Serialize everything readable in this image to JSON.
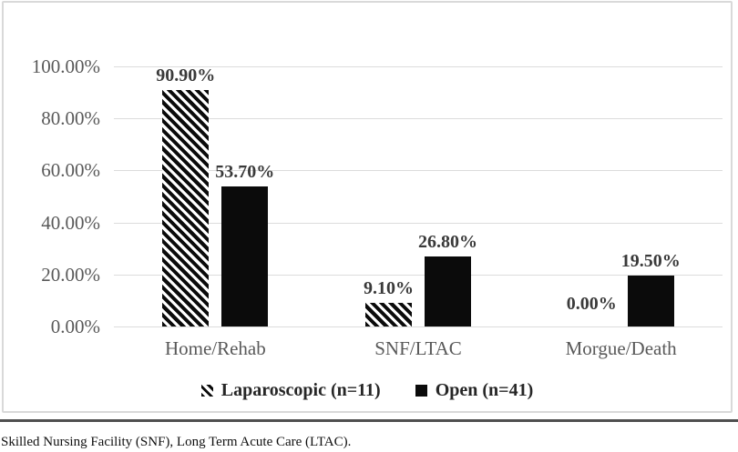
{
  "figure": {
    "footnote": "Skilled Nursing Facility (SNF), Long Term Acute Care (LTAC)."
  },
  "chart_data": {
    "type": "bar",
    "title": "",
    "xlabel": "",
    "ylabel": "",
    "categories": [
      "Home/Rehab",
      "SNF/LTAC",
      "Morgue/Death"
    ],
    "series": [
      {
        "name": "Laparoscopic (n=11)",
        "style": "diagonal-hatch",
        "values": [
          90.9,
          9.1,
          0.0
        ],
        "data_labels": [
          "90.90%",
          "9.10%",
          "0.00%"
        ]
      },
      {
        "name": "Open (n=41)",
        "style": "solid",
        "values": [
          53.7,
          26.8,
          19.5
        ],
        "data_labels": [
          "53.70%",
          "26.80%",
          "19.50%"
        ]
      }
    ],
    "ylim": [
      0,
      100
    ],
    "yticks": [
      {
        "value": 100,
        "label": "100.00%"
      },
      {
        "value": 80,
        "label": "80.00%"
      },
      {
        "value": 60,
        "label": "60.00%"
      },
      {
        "value": 40,
        "label": "40.00%"
      },
      {
        "value": 20,
        "label": "20.00%"
      },
      {
        "value": 0,
        "label": "0.00%"
      }
    ],
    "grid": "horizontal",
    "legend_position": "bottom",
    "colors": {
      "bar": "#0b0b0b",
      "hatch_background": "#ffffff",
      "axis_text": "#595959",
      "data_label_text": "#3a3a3a",
      "legend_text": "#262626",
      "gridline": "#dcdcdc",
      "chart_border": "#d9d9d9"
    }
  }
}
